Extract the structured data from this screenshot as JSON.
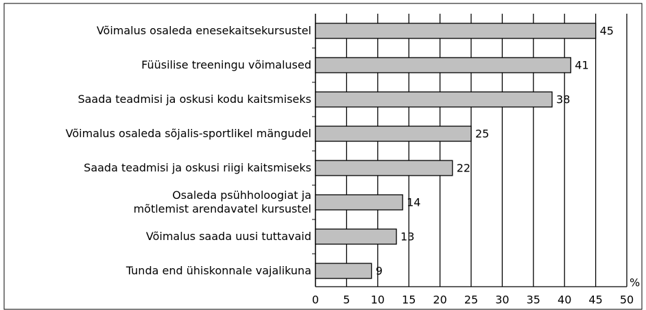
{
  "chart_data": {
    "type": "barh",
    "categories": [
      "Võimalus osaleda enesekaitsekursustel",
      "Füüsilise treeningu võimalused",
      "Saada teadmisi ja oskusi kodu kaitsmiseks",
      "Võimalus osaleda sõjalis-sportlikel mängudel",
      "Saada teadmisi ja oskusi riigi kaitsmiseks",
      "Osaleda psühholoogiat ja\nmõtlemist arendavatel kursustel",
      "Võimalus saada uusi tuttavaid",
      "Tunda end ühiskonnale vajalikuna"
    ],
    "values": [
      45,
      41,
      38,
      25,
      22,
      14,
      13,
      9
    ],
    "color": "#c0c0c0",
    "xlabel": "%",
    "xlim": [
      0,
      50
    ],
    "xticks": [
      0,
      5,
      10,
      15,
      20,
      25,
      30,
      35,
      40,
      45,
      50
    ],
    "grid": true
  }
}
